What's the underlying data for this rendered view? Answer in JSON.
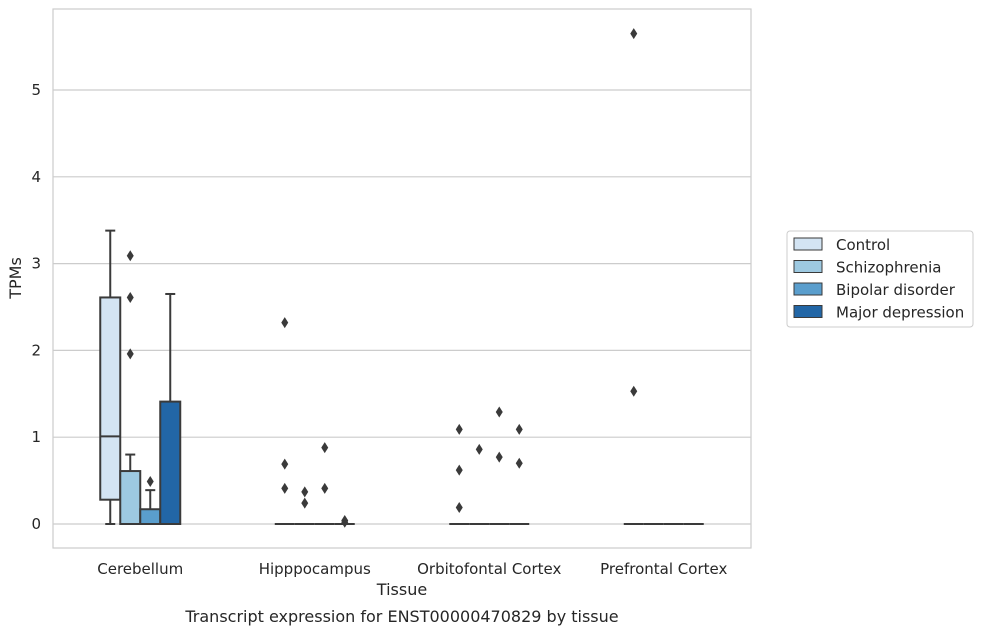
{
  "chart_data": {
    "type": "box",
    "caption": "Transcript expression for ENST00000470829 by tissue",
    "xlabel": "Tissue",
    "ylabel": "TPMs",
    "ylim": [
      -0.28,
      5.95
    ],
    "yticks": [
      0,
      1,
      2,
      3,
      4,
      5
    ],
    "grid": "horizontal",
    "legend_position": "right",
    "categories": [
      "Cerebellum",
      "Hipppocampus",
      "Orbitofontal Cortex",
      "Prefrontal Cortex"
    ],
    "series": [
      {
        "name": "Control",
        "color": "#d3e4f3",
        "boxes": [
          {
            "q1": 0.28,
            "median": 1.01,
            "q3": 2.61,
            "whisker_low": 0.0,
            "whisker_high": 3.38,
            "outliers": []
          },
          {
            "q1": 0.0,
            "median": 0.0,
            "q3": 0.0,
            "whisker_low": 0.0,
            "whisker_high": 0.0,
            "outliers": [
              2.32,
              0.69,
              0.41
            ]
          },
          {
            "q1": 0.0,
            "median": 0.0,
            "q3": 0.0,
            "whisker_low": 0.0,
            "whisker_high": 0.0,
            "outliers": [
              1.09,
              0.62,
              0.19
            ]
          },
          {
            "q1": 0.0,
            "median": 0.0,
            "q3": 0.0,
            "whisker_low": 0.0,
            "whisker_high": 0.0,
            "outliers": [
              5.65,
              1.53
            ]
          }
        ]
      },
      {
        "name": "Schizophrenia",
        "color": "#9dc9e1",
        "boxes": [
          {
            "q1": 0.0,
            "median": 0.0,
            "q3": 0.61,
            "whisker_low": 0.0,
            "whisker_high": 0.8,
            "outliers": [
              3.09,
              2.61,
              1.96
            ]
          },
          {
            "q1": 0.0,
            "median": 0.0,
            "q3": 0.0,
            "whisker_low": 0.0,
            "whisker_high": 0.0,
            "outliers": [
              0.37,
              0.24
            ]
          },
          {
            "q1": 0.0,
            "median": 0.0,
            "q3": 0.0,
            "whisker_low": 0.0,
            "whisker_high": 0.0,
            "outliers": [
              0.86
            ]
          },
          {
            "q1": 0.0,
            "median": 0.0,
            "q3": 0.0,
            "whisker_low": 0.0,
            "whisker_high": 0.0,
            "outliers": []
          }
        ]
      },
      {
        "name": "Bipolar disorder",
        "color": "#5a9ecd",
        "boxes": [
          {
            "q1": 0.0,
            "median": 0.0,
            "q3": 0.17,
            "whisker_low": 0.0,
            "whisker_high": 0.39,
            "outliers": [
              0.49
            ]
          },
          {
            "q1": 0.0,
            "median": 0.0,
            "q3": 0.0,
            "whisker_low": 0.0,
            "whisker_high": 0.0,
            "outliers": [
              0.88,
              0.41
            ]
          },
          {
            "q1": 0.0,
            "median": 0.0,
            "q3": 0.0,
            "whisker_low": 0.0,
            "whisker_high": 0.0,
            "outliers": [
              1.29,
              0.77
            ]
          },
          {
            "q1": 0.0,
            "median": 0.0,
            "q3": 0.0,
            "whisker_low": 0.0,
            "whisker_high": 0.0,
            "outliers": []
          }
        ]
      },
      {
        "name": "Major depression",
        "color": "#2266a6",
        "boxes": [
          {
            "q1": 0.0,
            "median": 0.0,
            "q3": 1.41,
            "whisker_low": 0.0,
            "whisker_high": 2.65,
            "outliers": []
          },
          {
            "q1": 0.0,
            "median": 0.0,
            "q3": 0.0,
            "whisker_low": 0.0,
            "whisker_high": 0.0,
            "outliers": [
              0.04,
              0.02
            ]
          },
          {
            "q1": 0.0,
            "median": 0.0,
            "q3": 0.0,
            "whisker_low": 0.0,
            "whisker_high": 0.0,
            "outliers": [
              1.09,
              0.7
            ]
          },
          {
            "q1": 0.0,
            "median": 0.0,
            "q3": 0.0,
            "whisker_low": 0.0,
            "whisker_high": 0.0,
            "outliers": []
          }
        ]
      }
    ]
  }
}
